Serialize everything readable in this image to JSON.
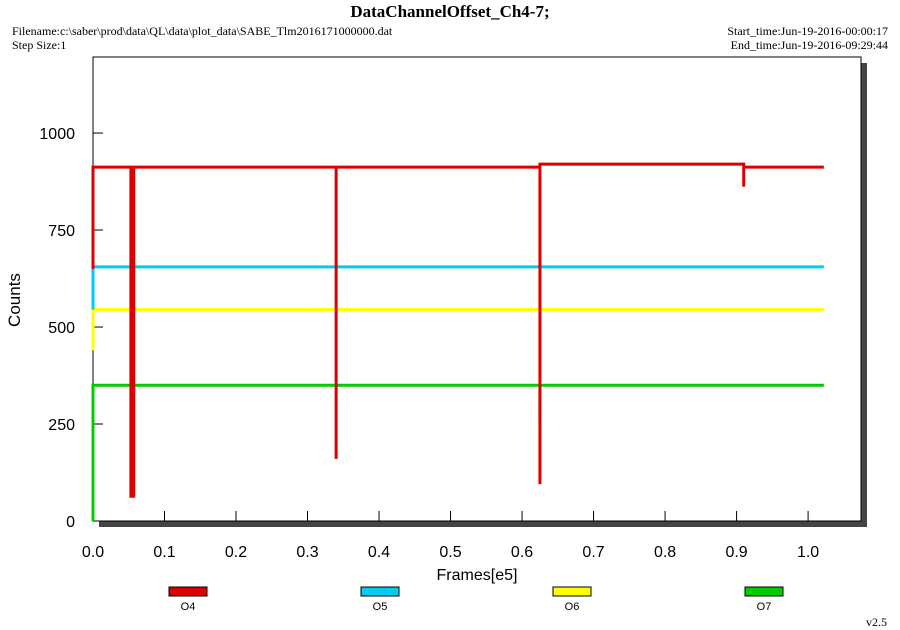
{
  "chart_data": {
    "type": "line",
    "title": "DataChannelOffset_Ch4-7;",
    "filename": "Filename:c:\\saber\\prod\\data\\QL\\data\\plot_data\\SABE_Tlm2016171000000.dat",
    "step_size": "Step Size:1",
    "start_time": "Start_time:Jun-19-2016-00:00:17",
    "end_time": "End_time:Jun-19-2016-09:29:44",
    "version": "v2.5",
    "x_label": "Frames[e5]",
    "y_label": "Counts",
    "xlim": [
      0,
      1.074
    ],
    "ylim": [
      0,
      1196
    ],
    "xticks": [
      {
        "value": 0,
        "label": "0.0"
      },
      0.1,
      0.2,
      0.3,
      0.4,
      0.5,
      0.6,
      0.7,
      0.8,
      0.9,
      {
        "value": 1,
        "label": "1.0"
      }
    ],
    "yticks": [
      0,
      250,
      500,
      750,
      1000
    ],
    "legend": "bottom",
    "series": [
      {
        "name": "O7",
        "color": "#00cc00",
        "x": [
          0,
          0,
          0.053,
          0.055,
          0.055,
          0.057,
          0.625,
          0.625,
          0.625,
          1.022
        ],
        "values": [
          0,
          350,
          350,
          160,
          350,
          350,
          350,
          255,
          350,
          350
        ]
      },
      {
        "name": "O6",
        "color": "#ffff00",
        "x": [
          0,
          0,
          1.022
        ],
        "values": [
          440,
          545,
          545
        ]
      },
      {
        "name": "O5",
        "color": "#00ccee",
        "x": [
          0,
          0,
          1.022
        ],
        "values": [
          545,
          655,
          655
        ]
      },
      {
        "name": "O4",
        "color": "#dd0000",
        "x": [
          0,
          0,
          0.053,
          0.053,
          0.053,
          0.057,
          0.057,
          0.057,
          0.34,
          0.34,
          0.34,
          0.625,
          0.625,
          0.625,
          0.91,
          0.91,
          0.91,
          1.022
        ],
        "values": [
          650,
          912,
          912,
          60,
          912,
          912,
          60,
          912,
          912,
          160,
          912,
          912,
          95,
          920,
          920,
          862,
          912,
          912
        ]
      }
    ]
  }
}
